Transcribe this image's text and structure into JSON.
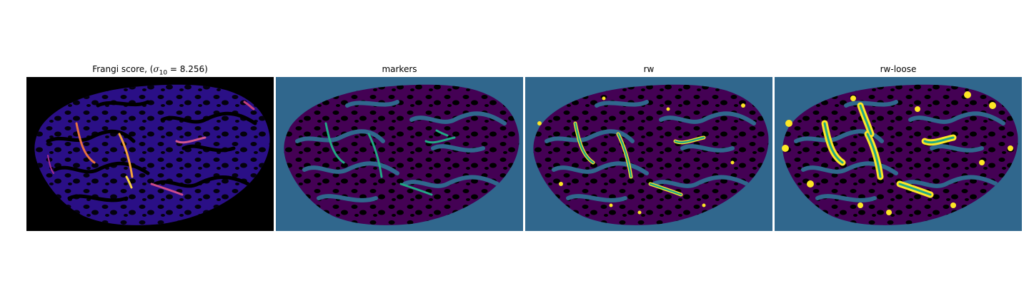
{
  "panels": [
    {
      "id": "frangi",
      "title_prefix": "Frangi score, (",
      "title_math_symbol": "σ",
      "title_math_subscript": "10",
      "title_math_rest": " = 8.256)",
      "colormap": "plasma"
    },
    {
      "id": "markers",
      "title": "markers",
      "colormap": "viridis"
    },
    {
      "id": "rw",
      "title": "rw",
      "colormap": "viridis"
    },
    {
      "id": "rw-loose",
      "title": "rw-loose",
      "colormap": "viridis"
    }
  ],
  "colors": {
    "plasma_background": "#000000",
    "plasma_low": "#1a0b6b",
    "plasma_mid": "#5b1ea6",
    "plasma_high": "#c7417f",
    "plasma_peak": "#fdd443",
    "viridis_background": "#30678d",
    "viridis_tissue": "#440154",
    "viridis_vessel": "#22a884",
    "viridis_highlight": "#fde725"
  }
}
